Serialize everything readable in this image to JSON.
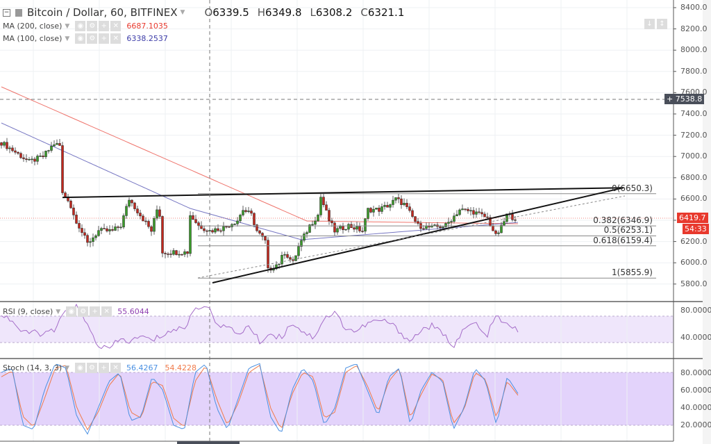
{
  "header": {
    "symbol": "Bitcoin / Dollar, 60, BITFINEX",
    "open_label": "O",
    "open": "6339.5",
    "high_label": "H",
    "high": "6349.8",
    "low_label": "L",
    "low": "6308.2",
    "close_label": "C",
    "close": "6321.1"
  },
  "indicators": {
    "ma200": {
      "label": "MA (200, close)",
      "value": "6687.1035",
      "color": "#e8392d"
    },
    "ma100": {
      "label": "MA (100, close)",
      "value": "6338.2537",
      "color": "#3c3ca8"
    },
    "rsi": {
      "label": "RSI (9, close)",
      "value": "55.6044",
      "color": "#8e3fb0"
    },
    "stoch": {
      "label": "Stoch (14, 3, 3)",
      "k": "56.4267",
      "d": "54.4228",
      "k_color": "#4a90e2",
      "d_color": "#f07a4a"
    }
  },
  "price_axis": [
    "8400.0",
    "8200.0",
    "8000.0",
    "7800.0",
    "7600.0",
    "7400.0",
    "7200.0",
    "7000.0",
    "6800.0",
    "6600.0",
    "6400.0",
    "6200.0",
    "6000.0",
    "5800.0"
  ],
  "rsi_axis": [
    "80.0000",
    "40.0000"
  ],
  "stoch_axis": [
    "80.0000",
    "60.0000",
    "40.0000",
    "20.0000"
  ],
  "crosshair_price": "7538.8",
  "last_price": "6419.7",
  "countdown": "54:33",
  "fibonacci": [
    {
      "label": "0(6650.3)",
      "price": 6650.3
    },
    {
      "label": "0.382(6346.9)",
      "price": 6346.9
    },
    {
      "label": "0.5(6253.1)",
      "price": 6253.1
    },
    {
      "label": "0.618(6159.4)",
      "price": 6159.4
    },
    {
      "label": "1(5855.9)",
      "price": 5855.9
    }
  ],
  "colors": {
    "up": "#3a9a2a",
    "down": "#c0281e",
    "rsi_band": "#efe6fb",
    "stoch_band": "#e3d3fb",
    "last_tag": "#e8392d",
    "cross_tag": "#4a4f5a"
  },
  "chart_data": {
    "type": "candlestick",
    "ylim": [
      5700,
      8450
    ],
    "close_keypoints": {
      "bar": [
        0,
        4,
        10,
        15,
        19,
        21,
        22,
        24,
        26,
        31,
        35,
        40,
        43,
        46,
        50,
        54,
        56,
        57,
        58,
        60,
        67,
        68,
        71,
        75,
        80,
        85,
        87,
        90,
        92,
        95,
        96,
        100,
        102,
        105,
        107,
        111,
        114,
        115,
        118,
        120,
        125,
        130,
        132,
        136,
        140,
        142,
        145,
        150,
        155,
        160,
        165,
        170,
        175,
        178,
        180,
        182,
        185
      ],
      "close": [
        7130,
        7060,
        6950,
        7000,
        7120,
        7100,
        6650,
        6600,
        6450,
        6180,
        6300,
        6300,
        6350,
        6600,
        6450,
        6300,
        6500,
        6450,
        6100,
        6100,
        6100,
        6450,
        6350,
        6300,
        6330,
        6400,
        6500,
        6450,
        6300,
        6200,
        5930,
        6000,
        6100,
        6000,
        6150,
        6350,
        6450,
        6620,
        6400,
        6300,
        6350,
        6300,
        6500,
        6500,
        6550,
        6600,
        6550,
        6350,
        6330,
        6350,
        6500,
        6480,
        6420,
        6250,
        6330,
        6450,
        6420
      ]
    },
    "ma200_keypoints": {
      "bar": [
        0,
        110,
        186
      ],
      "value": [
        7655,
        6393,
        6367
      ]
    },
    "ma100_keypoints": {
      "bar": [
        0,
        68,
        108,
        186
      ],
      "value": [
        7315,
        6511,
        6217,
        6380
      ]
    },
    "trendlines": [
      {
        "name": "resistance",
        "from": {
          "bar": 22,
          "price": 6615
        },
        "to": {
          "bar": 224,
          "price": 6706
        }
      },
      {
        "name": "support",
        "from": {
          "bar": 76,
          "price": 5812
        },
        "to": {
          "bar": 224,
          "price": 6706
        }
      }
    ],
    "rsi_values": [
      70,
      62,
      45,
      48,
      44,
      50,
      75,
      80,
      55,
      30,
      25,
      38,
      35,
      42,
      36,
      44,
      50,
      52,
      78,
      82,
      60,
      52,
      45,
      55,
      35,
      45,
      40,
      60,
      48,
      40,
      65,
      72,
      52,
      48,
      58,
      62,
      60,
      48,
      35,
      50,
      55,
      45,
      30,
      50,
      60,
      40,
      68,
      55,
      50
    ],
    "stoch_k": [
      80,
      85,
      20,
      15,
      60,
      90,
      85,
      30,
      10,
      40,
      70,
      80,
      25,
      30,
      75,
      60,
      20,
      15,
      80,
      90,
      40,
      15,
      50,
      85,
      90,
      30,
      10,
      60,
      85,
      70,
      20,
      40,
      85,
      90,
      60,
      30,
      75,
      85,
      20,
      60,
      80,
      70,
      15,
      40,
      85,
      70,
      20,
      75,
      56
    ],
    "stoch_d": [
      75,
      82,
      30,
      18,
      50,
      85,
      88,
      40,
      15,
      35,
      65,
      80,
      35,
      28,
      70,
      65,
      28,
      18,
      70,
      88,
      50,
      20,
      45,
      80,
      88,
      40,
      15,
      55,
      80,
      75,
      28,
      35,
      80,
      88,
      65,
      35,
      70,
      85,
      28,
      55,
      78,
      72,
      22,
      38,
      80,
      72,
      28,
      70,
      54
    ]
  }
}
